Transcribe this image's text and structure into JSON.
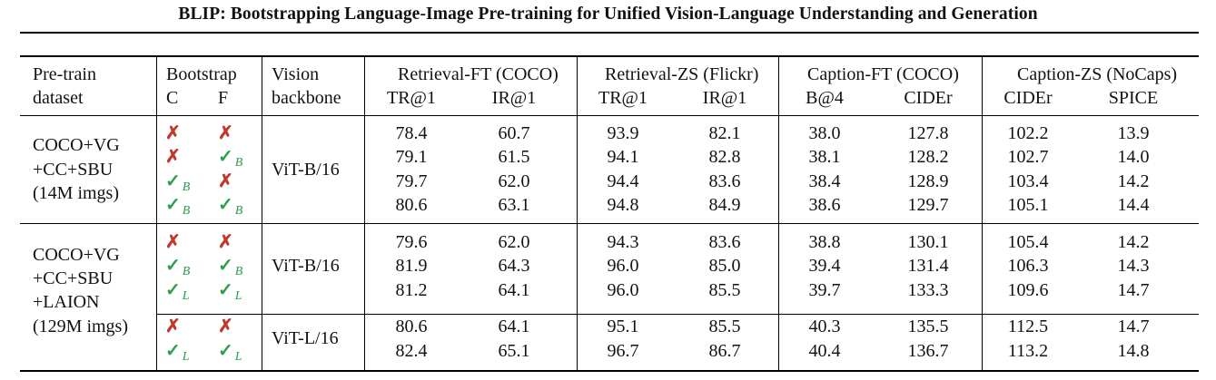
{
  "title": "BLIP: Bootstrapping Language-Image Pre-training for Unified Vision-Language Understanding and Generation",
  "headers": {
    "dataset": [
      "Pre-train",
      "dataset"
    ],
    "bootstrap": "Bootstrap",
    "bootstrap_c": "C",
    "bootstrap_f": "F",
    "backbone": [
      "Vision",
      "backbone"
    ],
    "groups": [
      "Retrieval-FT (COCO)",
      "Retrieval-ZS (Flickr)",
      "Caption-FT (COCO)",
      "Caption-ZS (NoCaps)"
    ],
    "metrics": [
      "TR@1",
      "IR@1",
      "TR@1",
      "IR@1",
      "B@4",
      "CIDEr",
      "CIDEr",
      "SPICE"
    ]
  },
  "sections": [
    {
      "dataset": [
        "COCO+VG",
        "+CC+SBU",
        "(14M imgs)"
      ],
      "backbones": [
        {
          "name": "ViT-B/16",
          "rows": [
            {
              "c": {
                "mark": "x",
                "sub": ""
              },
              "f": {
                "mark": "x",
                "sub": ""
              },
              "values": [
                "78.4",
                "60.7",
                "93.9",
                "82.1",
                "38.0",
                "127.8",
                "102.2",
                "13.9"
              ]
            },
            {
              "c": {
                "mark": "x",
                "sub": ""
              },
              "f": {
                "mark": "check",
                "sub": "B"
              },
              "values": [
                "79.1",
                "61.5",
                "94.1",
                "82.8",
                "38.1",
                "128.2",
                "102.7",
                "14.0"
              ]
            },
            {
              "c": {
                "mark": "check",
                "sub": "B"
              },
              "f": {
                "mark": "x",
                "sub": ""
              },
              "values": [
                "79.7",
                "62.0",
                "94.4",
                "83.6",
                "38.4",
                "128.9",
                "103.4",
                "14.2"
              ]
            },
            {
              "c": {
                "mark": "check",
                "sub": "B"
              },
              "f": {
                "mark": "check",
                "sub": "B"
              },
              "values": [
                "80.6",
                "63.1",
                "94.8",
                "84.9",
                "38.6",
                "129.7",
                "105.1",
                "14.4"
              ]
            }
          ]
        }
      ]
    },
    {
      "dataset": [
        "COCO+VG",
        "+CC+SBU",
        "+LAION",
        "(129M imgs)"
      ],
      "backbones": [
        {
          "name": "ViT-B/16",
          "rows": [
            {
              "c": {
                "mark": "x",
                "sub": ""
              },
              "f": {
                "mark": "x",
                "sub": ""
              },
              "values": [
                "79.6",
                "62.0",
                "94.3",
                "83.6",
                "38.8",
                "130.1",
                "105.4",
                "14.2"
              ]
            },
            {
              "c": {
                "mark": "check",
                "sub": "B"
              },
              "f": {
                "mark": "check",
                "sub": "B"
              },
              "values": [
                "81.9",
                "64.3",
                "96.0",
                "85.0",
                "39.4",
                "131.4",
                "106.3",
                "14.3"
              ]
            },
            {
              "c": {
                "mark": "check",
                "sub": "L"
              },
              "f": {
                "mark": "check",
                "sub": "L"
              },
              "values": [
                "81.2",
                "64.1",
                "96.0",
                "85.5",
                "39.7",
                "133.3",
                "109.6",
                "14.7"
              ]
            }
          ]
        },
        {
          "name": "ViT-L/16",
          "rows": [
            {
              "c": {
                "mark": "x",
                "sub": ""
              },
              "f": {
                "mark": "x",
                "sub": ""
              },
              "values": [
                "80.6",
                "64.1",
                "95.1",
                "85.5",
                "40.3",
                "135.5",
                "112.5",
                "14.7"
              ]
            },
            {
              "c": {
                "mark": "check",
                "sub": "L"
              },
              "f": {
                "mark": "check",
                "sub": "L"
              },
              "values": [
                "82.4",
                "65.1",
                "96.7",
                "86.7",
                "40.4",
                "136.7",
                "113.2",
                "14.8"
              ]
            }
          ]
        }
      ]
    }
  ]
}
